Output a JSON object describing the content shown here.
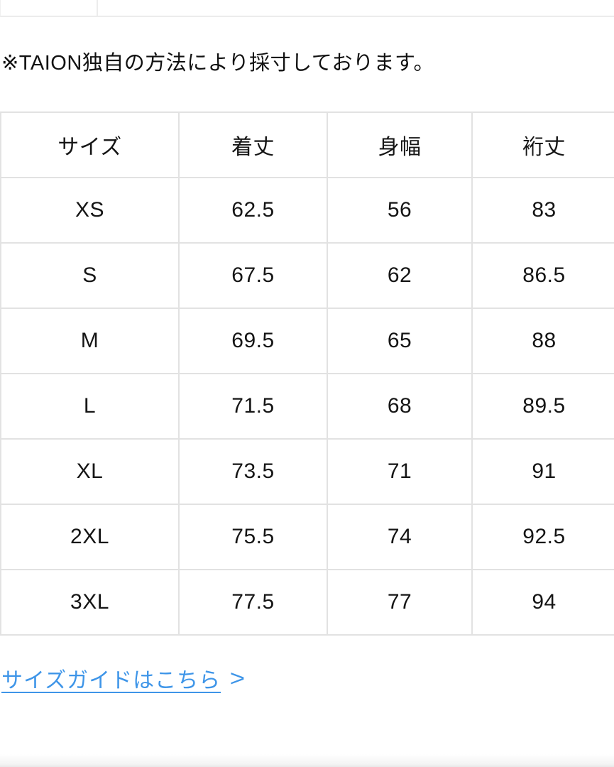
{
  "note": "※TAION独自の方法により採寸しております。",
  "size_table": {
    "columns": [
      "サイズ",
      "着丈",
      "身幅",
      "裄丈"
    ],
    "rows": [
      [
        "XS",
        "62.5",
        "56",
        "83"
      ],
      [
        "S",
        "67.5",
        "62",
        "86.5"
      ],
      [
        "M",
        "69.5",
        "65",
        "88"
      ],
      [
        "L",
        "71.5",
        "68",
        "89.5"
      ],
      [
        "XL",
        "73.5",
        "71",
        "91"
      ],
      [
        "2XL",
        "75.5",
        "74",
        "92.5"
      ],
      [
        "3XL",
        "77.5",
        "77",
        "94"
      ]
    ]
  },
  "size_guide_link": {
    "label": "サイズガイドはこちら",
    "chevron": ">"
  },
  "colors": {
    "link_blue": "#3e95e8",
    "table_border": "#e2e2e2",
    "text": "#111111"
  }
}
